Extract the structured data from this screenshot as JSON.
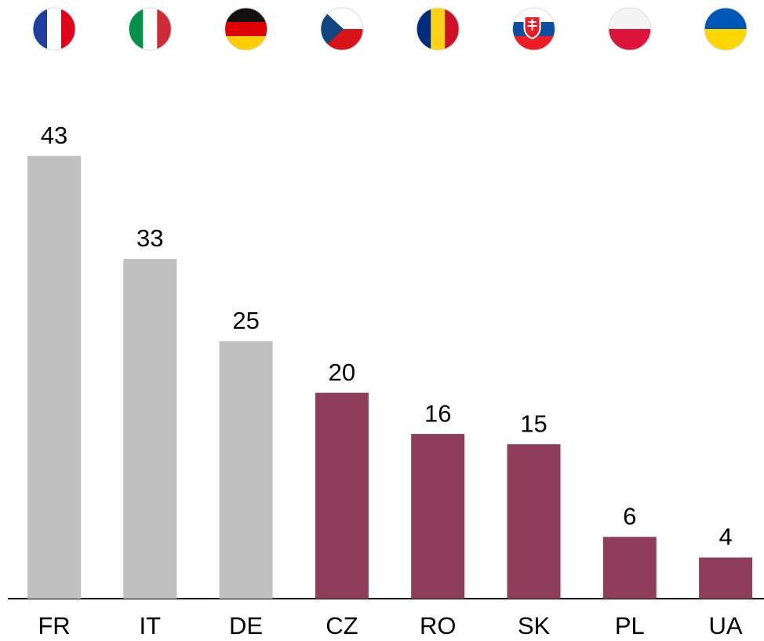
{
  "chart_data": {
    "type": "bar",
    "categories": [
      "FR",
      "IT",
      "DE",
      "CZ",
      "RO",
      "SK",
      "PL",
      "UA"
    ],
    "values": [
      43,
      33,
      25,
      20,
      16,
      15,
      6,
      4
    ],
    "colors": [
      "#c0c0c0",
      "#c0c0c0",
      "#c0c0c0",
      "#8e3e5a",
      "#8e3e5a",
      "#8e3e5a",
      "#8e3e5a",
      "#8e3e5a"
    ]
  }
}
